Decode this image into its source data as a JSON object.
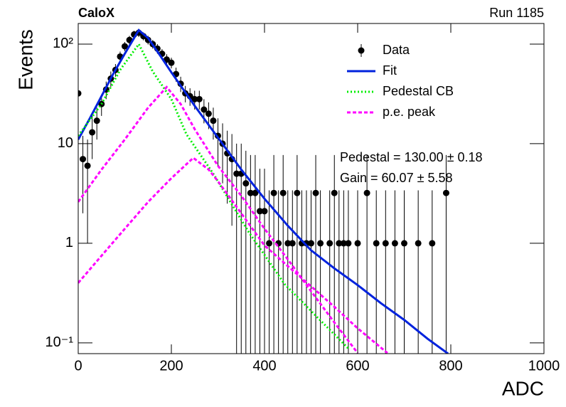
{
  "chart_data": {
    "type": "histogram-fit",
    "title": "CaloX",
    "subtitle": "Run 1185",
    "x_label": "ADC",
    "y_label": "Events",
    "log_y": true,
    "legend": "top-right",
    "xlim": [
      0,
      1000
    ],
    "xticks": [
      0,
      200,
      400,
      600,
      800,
      1000
    ],
    "ylim": [
      0.078,
      161
    ],
    "yticks": [
      {
        "value": 0.1,
        "label": "10⁻¹"
      },
      1,
      10,
      {
        "value": 100,
        "label": "10²"
      }
    ],
    "annotations": [
      "Pedestal = 130.00 ± 0.18",
      "Gain = 60.07 ± 5.58"
    ],
    "series": [
      {
        "name": "Data",
        "style": "points",
        "color": "#000000",
        "x": [
          0,
          10,
          20,
          30,
          40,
          50,
          60,
          70,
          80,
          90,
          100,
          110,
          120,
          130,
          140,
          150,
          160,
          170,
          180,
          190,
          200,
          210,
          220,
          230,
          240,
          250,
          260,
          270,
          280,
          290,
          300,
          310,
          320,
          330,
          340,
          350,
          360,
          370,
          380,
          390,
          400,
          410,
          420,
          430,
          440,
          450,
          460,
          470,
          480,
          490,
          500,
          510,
          520,
          540,
          550,
          560,
          570,
          580,
          600,
          620,
          640,
          660,
          680,
          700,
          730,
          760,
          790
        ],
        "values": [
          32,
          7,
          6,
          13,
          17,
          25,
          35,
          45,
          55,
          75,
          95,
          110,
          125,
          130,
          120,
          110,
          100,
          90,
          80,
          70,
          65,
          50,
          40,
          32,
          30,
          28,
          28,
          22,
          20,
          17,
          12,
          10,
          8,
          7,
          5,
          5,
          4,
          3.2,
          3.2,
          2.1,
          2.1,
          1,
          3.2,
          1,
          3.2,
          1,
          1,
          3.2,
          1,
          1,
          1,
          3.2,
          1,
          1,
          3.2,
          1,
          1,
          1,
          1,
          3.2,
          1,
          1,
          1,
          1,
          1,
          1,
          3.2
        ],
        "errors": [
          6,
          5,
          5,
          6,
          6,
          6,
          7,
          8,
          8,
          9,
          10,
          11,
          11,
          12,
          11,
          11,
          10,
          10,
          9,
          9,
          8,
          8,
          7,
          6,
          6,
          6,
          6,
          6,
          6,
          6,
          6,
          6,
          5.5,
          5.5,
          5,
          5,
          4.5,
          4.5,
          4.5,
          3.5,
          3.5,
          2.4,
          4.5,
          2.4,
          4.5,
          2.4,
          2.4,
          4.5,
          2.4,
          2.4,
          2.4,
          4.5,
          2.4,
          2.4,
          4.5,
          2.4,
          2.4,
          2.4,
          2.4,
          4.5,
          2.4,
          2.4,
          2.4,
          2.4,
          2.4,
          2.4,
          4.5
        ]
      },
      {
        "name": "Fit",
        "style": "solid",
        "color": "#0022dd",
        "x": [
          0,
          25,
          50,
          75,
          100,
          115,
          130,
          150,
          175,
          200,
          250,
          300,
          350,
          400,
          450,
          500,
          550,
          600,
          650,
          700,
          750,
          794
        ],
        "values": [
          11,
          18,
          30,
          50,
          80,
          105,
          138,
          115,
          78,
          52,
          24,
          11.5,
          5.5,
          2.8,
          1.5,
          0.85,
          0.56,
          0.38,
          0.25,
          0.17,
          0.11,
          0.078
        ]
      },
      {
        "name": "Pedestal CB",
        "style": "dotted",
        "color": "#00ee00",
        "x": [
          0,
          50,
          90,
          130,
          160,
          200,
          232,
          290,
          366,
          443,
          519,
          580
        ],
        "values": [
          12,
          25,
          55,
          100,
          53,
          28,
          12.5,
          5,
          1.3,
          0.39,
          0.17,
          0.088
        ]
      },
      {
        "name": "p.e. peak",
        "style": "dashed",
        "color": "#ff00ff",
        "x": [
          0,
          50,
          100,
          150,
          190,
          220,
          250,
          300,
          350,
          400,
          450,
          500,
          550,
          600
        ],
        "values": [
          2.6,
          5.5,
          11,
          23,
          37,
          25,
          14,
          6,
          3,
          1.4,
          0.69,
          0.33,
          0.16,
          0.079
        ]
      },
      {
        "style": "dashed",
        "color": "#ff00ff",
        "x": [
          0,
          50,
          100,
          150,
          200,
          247,
          280,
          300,
          350,
          400,
          450,
          500,
          550,
          600,
          664
        ],
        "values": [
          0.4,
          0.75,
          1.4,
          2.6,
          4.5,
          7.2,
          5.5,
          4.2,
          2.0,
          0.95,
          0.59,
          0.37,
          0.23,
          0.14,
          0.079
        ]
      }
    ]
  }
}
